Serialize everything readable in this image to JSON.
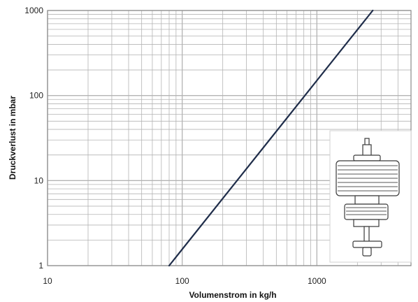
{
  "chart_data": {
    "type": "line",
    "x_scale": "log",
    "y_scale": "log",
    "xlabel": "Volumenstrom in kg/h",
    "ylabel": "Druckverlust in mbar",
    "xlim": [
      10,
      5000
    ],
    "ylim": [
      1,
      1000
    ],
    "x_ticks": [
      "10",
      "100",
      "1000"
    ],
    "y_ticks": [
      "1",
      "10",
      "100",
      "1000"
    ],
    "grid": true,
    "series": [
      {
        "x": [
          80,
          2600
        ],
        "y": [
          1,
          1000
        ]
      }
    ],
    "inset": "valve-illustration",
    "colors": {
      "line": "#1f2d4a",
      "grid": "#b4b4b4",
      "axis": "#8a8a8a"
    }
  }
}
